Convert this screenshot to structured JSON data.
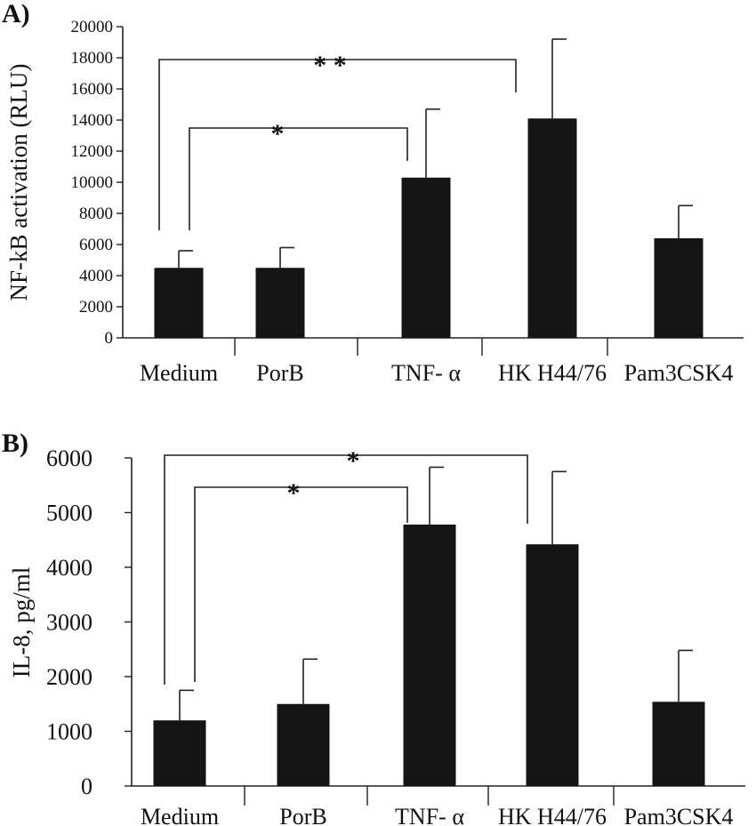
{
  "chart_data": [
    {
      "panel": "A)",
      "type": "bar",
      "ylabel": "NF-kB activation (RLU)",
      "xlabel": "",
      "categories": [
        "Medium",
        "PorB",
        "TNF- α",
        "HK H44/76",
        "Pam3CSK4"
      ],
      "values": [
        4500,
        4500,
        10300,
        14100,
        6400
      ],
      "errors": [
        1100,
        1300,
        4400,
        5100,
        2100
      ],
      "ylim": [
        0,
        20000
      ],
      "yticks": [
        "0",
        "2000",
        "4000",
        "6000",
        "8000",
        "10000",
        "12000",
        "14000",
        "16000",
        "18000",
        "20000"
      ],
      "significance": [
        {
          "from": "PorB",
          "to": "TNF- α",
          "label": "*"
        },
        {
          "from": "Medium",
          "to": "HK H44/76",
          "label": "* *"
        }
      ],
      "bar_color": "#141414",
      "grid": false
    },
    {
      "panel": "B)",
      "type": "bar",
      "ylabel": "IL-8, pg/ml",
      "xlabel": "",
      "categories": [
        "Medium",
        "PorB",
        "TNF- α",
        "HK H44/76",
        "Pam3CSK4"
      ],
      "values": [
        1200,
        1500,
        4780,
        4420,
        1540
      ],
      "errors": [
        550,
        820,
        1050,
        1330,
        940
      ],
      "ylim": [
        0,
        6000
      ],
      "yticks": [
        "0",
        "1000",
        "2000",
        "3000",
        "4000",
        "5000",
        "6000"
      ],
      "significance": [
        {
          "from": "PorB",
          "to": "TNF- α",
          "label": "*"
        },
        {
          "from": "Medium",
          "to": "HK H44/76",
          "label": "*"
        }
      ],
      "bar_color": "#141414",
      "grid": false
    }
  ]
}
